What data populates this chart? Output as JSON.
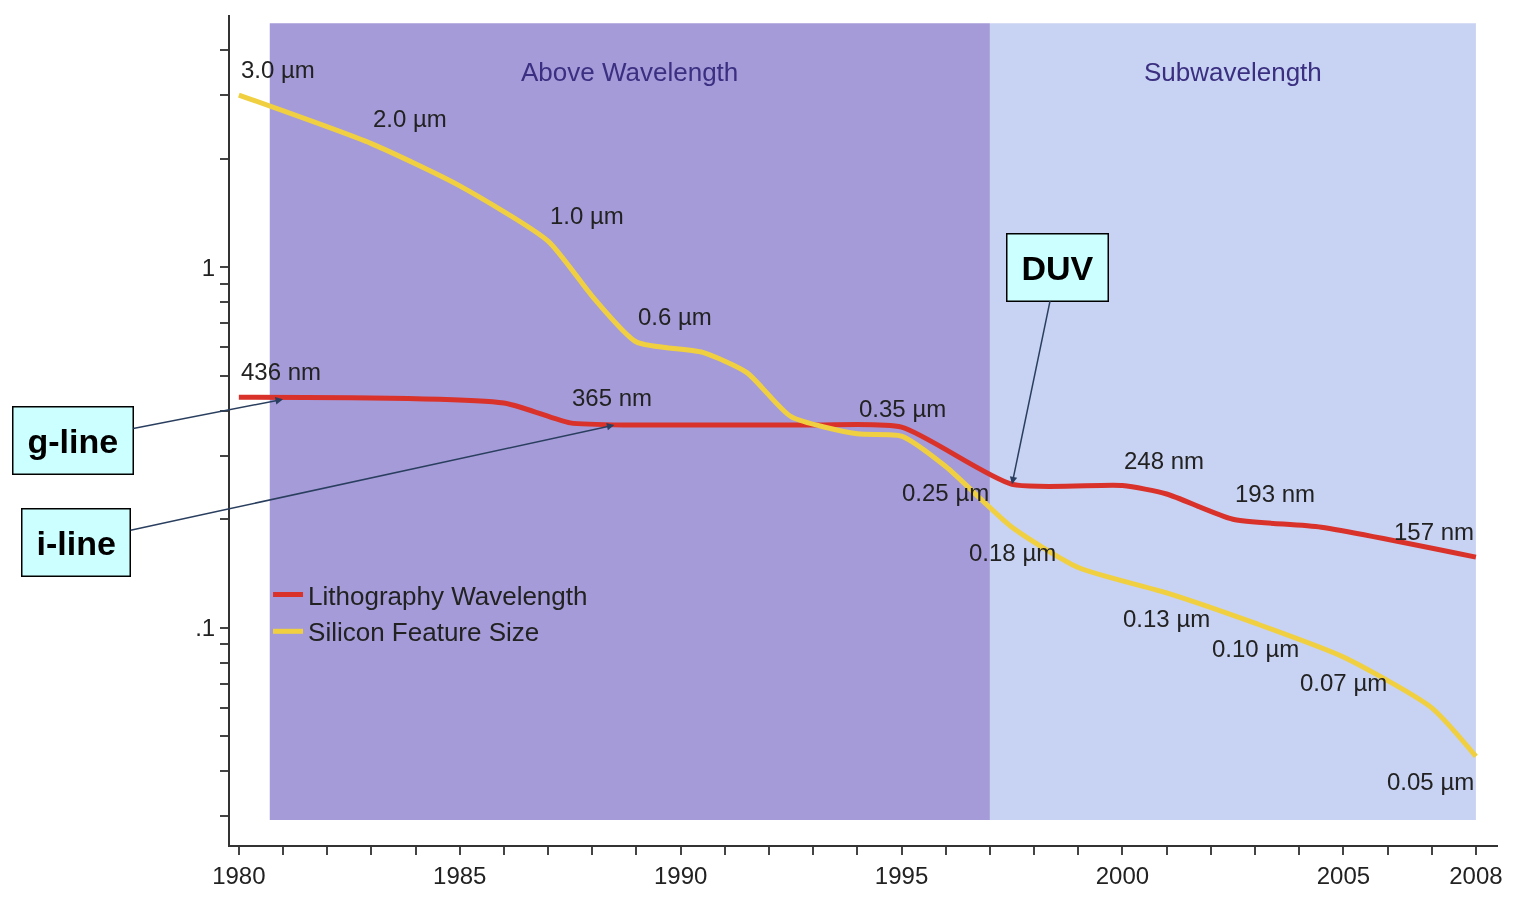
{
  "chart_data": {
    "type": "line",
    "x": [
      1980,
      1983,
      1985,
      1987,
      1988,
      1989,
      1990.5,
      1991.5,
      1992.5,
      1994,
      1995,
      1996,
      1997.5,
      1999,
      2001,
      2003,
      2005,
      2007,
      2008
    ],
    "series": [
      {
        "name": "Lithography Wavelength",
        "color": "#d9322a",
        "x": [
          1980,
          1986,
          1987.5,
          1989,
          1993,
          1995,
          1997.5,
          2000,
          2001,
          2002.5,
          2004.5,
          2008
        ],
        "values": [
          0.436,
          0.42,
          0.37,
          0.365,
          0.365,
          0.36,
          0.25,
          0.248,
          0.235,
          0.2,
          0.19,
          0.157
        ]
      },
      {
        "name": "Silicon Feature Size",
        "color": "#f0d040",
        "values": [
          3.0,
          2.2,
          1.68,
          1.18,
          0.83,
          0.62,
          0.58,
          0.51,
          0.385,
          0.345,
          0.34,
          0.28,
          0.19,
          0.147,
          0.125,
          0.103,
          0.083,
          0.06,
          0.044
        ]
      }
    ],
    "xlim": [
      1979.8,
      2008.5
    ],
    "xticks": [
      1980,
      {
        "value": 1981,
        "label": null
      },
      {
        "value": 1982,
        "label": null
      },
      {
        "value": 1983,
        "label": null
      },
      {
        "value": 1984,
        "label": null
      },
      1985,
      {
        "value": 1986,
        "label": null
      },
      {
        "value": 1987,
        "label": null
      },
      {
        "value": 1988,
        "label": null
      },
      {
        "value": 1989,
        "label": null
      },
      1990,
      {
        "value": 1991,
        "label": null
      },
      {
        "value": 1992,
        "label": null
      },
      {
        "value": 1993,
        "label": null
      },
      {
        "value": 1994,
        "label": null
      },
      1995,
      {
        "value": 1996,
        "label": null
      },
      {
        "value": 1997,
        "label": null
      },
      {
        "value": 1998,
        "label": null
      },
      {
        "value": 1999,
        "label": null
      },
      2000,
      {
        "value": 2001,
        "label": null
      },
      {
        "value": 2002,
        "label": null
      },
      {
        "value": 2003,
        "label": null
      },
      {
        "value": 2004,
        "label": null
      },
      2005,
      {
        "value": 2006,
        "label": null
      },
      {
        "value": 2007,
        "label": null
      },
      2008
    ],
    "ylim": [
      0.025,
      5
    ],
    "yticks": [
      {
        "value": 0.03,
        "label": null
      },
      {
        "value": 0.04,
        "label": null
      },
      {
        "value": 0.05,
        "label": null
      },
      {
        "value": 0.06,
        "label": null
      },
      {
        "value": 0.07,
        "label": null
      },
      {
        "value": 0.08,
        "label": null
      },
      {
        "value": 0.09,
        "label": null
      },
      {
        "value": 0.1,
        "label": ".1"
      },
      {
        "value": 0.2,
        "label": null
      },
      {
        "value": 0.3,
        "label": null
      },
      {
        "value": 0.4,
        "label": null
      },
      {
        "value": 0.5,
        "label": null
      },
      {
        "value": 0.6,
        "label": null
      },
      {
        "value": 0.7,
        "label": null
      },
      {
        "value": 0.8,
        "label": null
      },
      {
        "value": 0.9,
        "label": null
      },
      1,
      {
        "value": 2,
        "label": null
      },
      {
        "value": 3,
        "label": null
      },
      {
        "value": 4,
        "label": null
      }
    ],
    "log": true,
    "grid": false,
    "legend": "bottom left",
    "marker": "none",
    "line_style": "solid",
    "bands": [
      {
        "axis": "x",
        "from": 1980.7,
        "to": 1997,
        "label": "Above Wavelength",
        "color": "#a59bd8"
      },
      {
        "axis": "x",
        "from": 1997,
        "to": 2008,
        "label": "Subwavelength",
        "color": "#c8d2f2"
      }
    ],
    "annotations": [
      {
        "text": "g-line",
        "x": 1981,
        "y": 0.43
      },
      {
        "text": "i-line",
        "x": 1988.5,
        "y": 0.365
      },
      {
        "text": "DUV",
        "x": 1997.5,
        "y": 0.25
      },
      {
        "text": "3.0 µm",
        "x": 1980,
        "y": 3.0
      },
      {
        "text": "2.0 µm",
        "x": 1983,
        "y": 2.2
      },
      {
        "text": "1.0 µm",
        "x": 1987,
        "y": 1.18
      },
      {
        "text": "0.6 µm",
        "x": 1989,
        "y": 0.62
      },
      {
        "text": "0.35 µm",
        "x": 1994,
        "y": 0.345
      },
      {
        "text": "0.25 µm",
        "x": 1996,
        "y": 0.28
      },
      {
        "text": "0.18 µm",
        "x": 1997.5,
        "y": 0.19
      },
      {
        "text": "0.13 µm",
        "x": 2001,
        "y": 0.125
      },
      {
        "text": "0.10 µm",
        "x": 2003,
        "y": 0.103
      },
      {
        "text": "0.07 µm",
        "x": 2005,
        "y": 0.083
      },
      {
        "text": "0.05 µm",
        "x": 2008,
        "y": 0.044
      },
      {
        "text": "436 nm",
        "x": 1980,
        "y": 0.436
      },
      {
        "text": "365 nm",
        "x": 1987.5,
        "y": 0.37
      },
      {
        "text": "248 nm",
        "x": 2000,
        "y": 0.248
      },
      {
        "text": "193 nm",
        "x": 2002.5,
        "y": 0.2
      },
      {
        "text": "157 nm",
        "x": 2008,
        "y": 0.157
      }
    ]
  }
}
